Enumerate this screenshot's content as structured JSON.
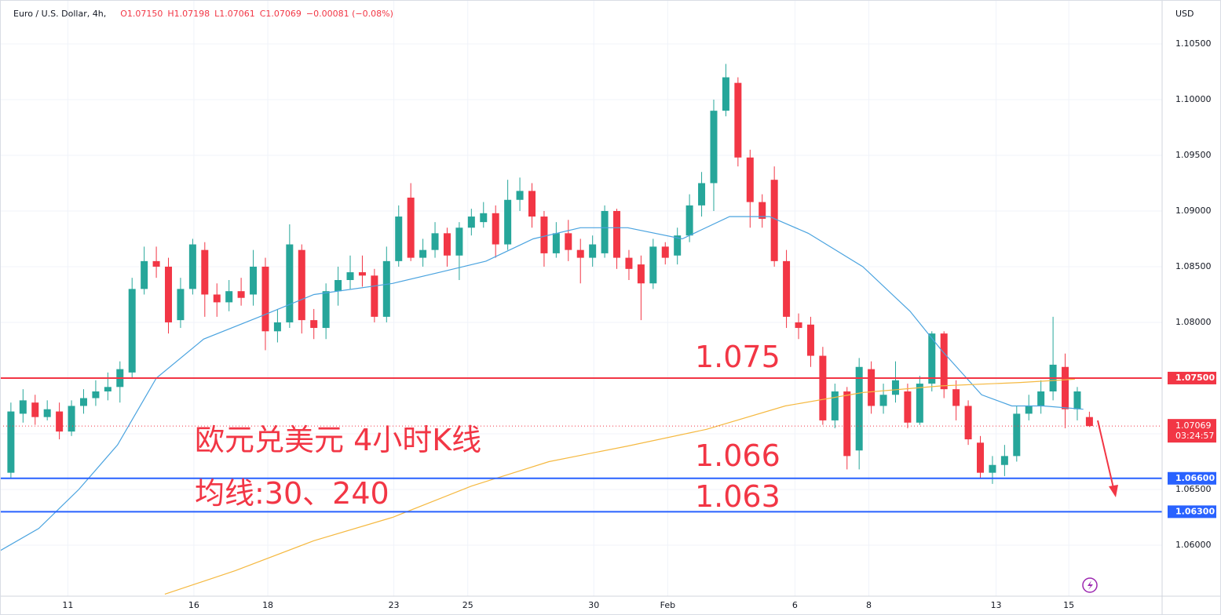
{
  "chart_data": {
    "type": "candlestick",
    "title": "Euro / U.S. Dollar, 4h,",
    "ohlc_header": [
      "O1.07150",
      "H1.07198",
      "L1.07061",
      "C1.07069",
      "−0.00081 (−0.08%)"
    ],
    "currency": "USD",
    "up_color": "#26a69a",
    "down_color": "#f23645",
    "open": [
      1.0665,
      1.0718,
      1.0728,
      1.0715,
      1.072,
      1.0702,
      1.0725,
      1.0732,
      1.0738,
      1.0742,
      1.0755,
      1.083,
      1.0855,
      1.085,
      1.0802,
      1.083,
      1.0865,
      1.0825,
      1.0818,
      1.0828,
      1.0825,
      1.085,
      1.0792,
      1.08,
      1.0865,
      1.0802,
      1.0795,
      1.0828,
      1.0838,
      1.0845,
      1.0842,
      1.0805,
      1.0855,
      1.0912,
      1.0858,
      1.0865,
      1.088,
      1.086,
      1.0885,
      1.089,
      1.0898,
      1.087,
      1.091,
      1.0918,
      1.0895,
      1.0862,
      1.088,
      1.0865,
      1.0858,
      1.0862,
      1.09,
      1.0858,
      1.0852,
      1.0835,
      1.0868,
      1.086,
      1.0878,
      1.0905,
      1.0925,
      1.099,
      1.1015,
      1.0948,
      1.0908,
      1.0928,
      1.0855,
      1.08,
      1.0798,
      1.077,
      1.0712,
      1.0738,
      1.0685,
      1.0758,
      1.0725,
      1.0735,
      1.0738,
      1.071,
      1.0745,
      1.079,
      1.074,
      1.0725,
      1.0692,
      1.0665,
      1.0672,
      1.068,
      1.0718,
      1.0725,
      1.0738,
      1.076,
      1.0722,
      1.0715
    ],
    "high": [
      1.0728,
      1.074,
      1.0735,
      1.073,
      1.0728,
      1.073,
      1.074,
      1.0748,
      1.0755,
      1.0765,
      1.084,
      1.0868,
      1.0868,
      1.0858,
      1.084,
      1.0875,
      1.0872,
      1.0835,
      1.0838,
      1.084,
      1.0865,
      1.0858,
      1.0812,
      1.0888,
      1.087,
      1.0812,
      1.0835,
      1.085,
      1.086,
      1.086,
      1.0848,
      1.0868,
      1.0905,
      1.0925,
      1.0875,
      1.089,
      1.0885,
      1.089,
      1.0902,
      1.0908,
      1.0905,
      1.0928,
      1.093,
      1.0925,
      1.09,
      1.089,
      1.0892,
      1.0875,
      1.0878,
      1.0905,
      1.0902,
      1.0865,
      1.086,
      1.0875,
      1.0872,
      1.0885,
      1.0915,
      1.0935,
      1.1,
      1.1032,
      1.102,
      1.0955,
      1.0915,
      1.094,
      1.0865,
      1.0808,
      1.0805,
      1.0778,
      1.0745,
      1.0742,
      1.0768,
      1.0765,
      1.0745,
      1.0765,
      1.0745,
      1.0752,
      1.0792,
      1.0792,
      1.0748,
      1.073,
      1.0698,
      1.068,
      1.069,
      1.0725,
      1.0735,
      1.0748,
      1.0805,
      1.0772,
      1.0742,
      1.07198
    ],
    "low": [
      1.066,
      1.071,
      1.0708,
      1.0712,
      1.0695,
      1.0698,
      1.0718,
      1.0725,
      1.073,
      1.0728,
      1.075,
      1.0825,
      1.084,
      1.079,
      1.0795,
      1.0825,
      1.0805,
      1.0805,
      1.081,
      1.0815,
      1.0815,
      1.0775,
      1.0782,
      1.0795,
      1.079,
      1.0785,
      1.0785,
      1.0815,
      1.083,
      1.0832,
      1.08,
      1.08,
      1.085,
      1.0855,
      1.085,
      1.0858,
      1.085,
      1.0838,
      1.0878,
      1.0885,
      1.0858,
      1.0865,
      1.09,
      1.0885,
      1.085,
      1.0858,
      1.0855,
      1.0835,
      1.085,
      1.0858,
      1.0848,
      1.0838,
      1.0802,
      1.083,
      1.0852,
      1.0852,
      1.0872,
      1.0895,
      1.09,
      1.0985,
      1.094,
      1.0885,
      1.0885,
      1.085,
      1.0795,
      1.0785,
      1.076,
      1.0708,
      1.0705,
      1.0668,
      1.0668,
      1.0718,
      1.0718,
      1.0728,
      1.0705,
      1.0708,
      1.0738,
      1.0732,
      1.0712,
      1.069,
      1.066,
      1.0655,
      1.0662,
      1.0675,
      1.0712,
      1.0718,
      1.073,
      1.0705,
      1.0712,
      1.07061
    ],
    "close": [
      1.072,
      1.073,
      1.0715,
      1.0722,
      1.0702,
      1.0725,
      1.0732,
      1.0738,
      1.0742,
      1.0758,
      1.083,
      1.0855,
      1.085,
      1.08,
      1.083,
      1.087,
      1.0825,
      1.0818,
      1.0828,
      1.0822,
      1.085,
      1.0792,
      1.08,
      1.087,
      1.0802,
      1.0795,
      1.0828,
      1.0838,
      1.0845,
      1.0842,
      1.0805,
      1.0855,
      1.0895,
      1.0858,
      1.0865,
      1.088,
      1.086,
      1.0885,
      1.0895,
      1.0898,
      1.087,
      1.091,
      1.0918,
      1.0895,
      1.0862,
      1.088,
      1.0865,
      1.0858,
      1.087,
      1.09,
      1.0858,
      1.0848,
      1.0835,
      1.0868,
      1.0858,
      1.0878,
      1.0905,
      1.0925,
      1.099,
      1.102,
      1.0948,
      1.0908,
      1.0893,
      1.0855,
      1.0805,
      1.0795,
      1.077,
      1.0712,
      1.0738,
      1.068,
      1.076,
      1.0725,
      1.0735,
      1.0748,
      1.071,
      1.0745,
      1.079,
      1.074,
      1.0725,
      1.0695,
      1.0665,
      1.0672,
      1.068,
      1.0718,
      1.0725,
      1.0738,
      1.0762,
      1.0722,
      1.0738,
      1.07069
    ],
    "series": [
      {
        "color": "#4aa3df",
        "x": [
          -0.9,
          2.3,
          5.6,
          8.8,
          12.0,
          15.9,
          20.5,
          25.0,
          31.5,
          35.4,
          39.2,
          43.1,
          47.0,
          50.9,
          55.4,
          59.3,
          62.6,
          65.8,
          70.3,
          74.2,
          76.8,
          80.1,
          82.6,
          85.2,
          88.5
        ],
        "values": [
          1.0595,
          1.0615,
          1.065,
          1.069,
          1.075,
          1.0785,
          1.0805,
          1.0825,
          1.0835,
          1.0845,
          1.0855,
          1.0875,
          1.0885,
          1.0885,
          1.0875,
          1.0895,
          1.0895,
          1.088,
          1.085,
          1.081,
          1.0775,
          1.0735,
          1.0725,
          1.0725,
          1.0722
        ]
      },
      {
        "color": "#f5b941",
        "x": [
          12.7,
          18.5,
          25.0,
          31.5,
          38.0,
          44.4,
          50.9,
          57.4,
          63.9,
          70.3,
          76.8,
          83.3,
          87.8
        ],
        "values": [
          1.0556,
          1.0577,
          1.0604,
          1.0625,
          1.0653,
          1.0675,
          1.0689,
          1.0704,
          1.0725,
          1.0737,
          1.0743,
          1.0746,
          1.0749
        ]
      }
    ],
    "xlim": [
      -0.9,
      95
    ],
    "xticks": [
      {
        "value": 4.7,
        "label": "11"
      },
      {
        "value": 15.1,
        "label": "16"
      },
      {
        "value": 21.2,
        "label": "18"
      },
      {
        "value": 31.6,
        "label": "23"
      },
      {
        "value": 37.7,
        "label": "25"
      },
      {
        "value": 48.1,
        "label": "30"
      },
      {
        "value": 54.2,
        "label": "Feb"
      },
      {
        "value": 64.7,
        "label": "6"
      },
      {
        "value": 70.8,
        "label": "8"
      },
      {
        "value": 81.3,
        "label": "13"
      },
      {
        "value": 87.3,
        "label": "15"
      }
    ],
    "ylim": [
      1.05542,
      1.10894
    ],
    "yticks": [
      {
        "value": 1.06,
        "label": "1.06000"
      },
      {
        "value": 1.065,
        "label": "1.06500"
      },
      {
        "value": 1.07,
        "label": "1.07000"
      },
      {
        "value": 1.075,
        "label": "1.07500"
      },
      {
        "value": 1.08,
        "label": "1.08000"
      },
      {
        "value": 1.085,
        "label": "1.08500"
      },
      {
        "value": 1.09,
        "label": "1.09000"
      },
      {
        "value": 1.095,
        "label": "1.09500"
      },
      {
        "value": 1.1,
        "label": "1.10000"
      },
      {
        "value": 1.105,
        "label": "1.10500"
      }
    ],
    "grid": true,
    "hlines": [
      {
        "value": 1.075,
        "label": "1.07500",
        "color": "#f23645"
      },
      {
        "value": 1.066,
        "label": "1.06600",
        "color": "#2962ff"
      },
      {
        "value": 1.063,
        "label": "1.06300",
        "color": "#2962ff"
      }
    ],
    "last_price": {
      "value": 1.07069,
      "label": "1.07069",
      "countdown": "03:24:57",
      "color": "#f23645"
    },
    "annotations": [
      "1.075",
      "1.066",
      "1.063",
      "欧元兑美元 4小时K线",
      "均线:30、240"
    ]
  }
}
